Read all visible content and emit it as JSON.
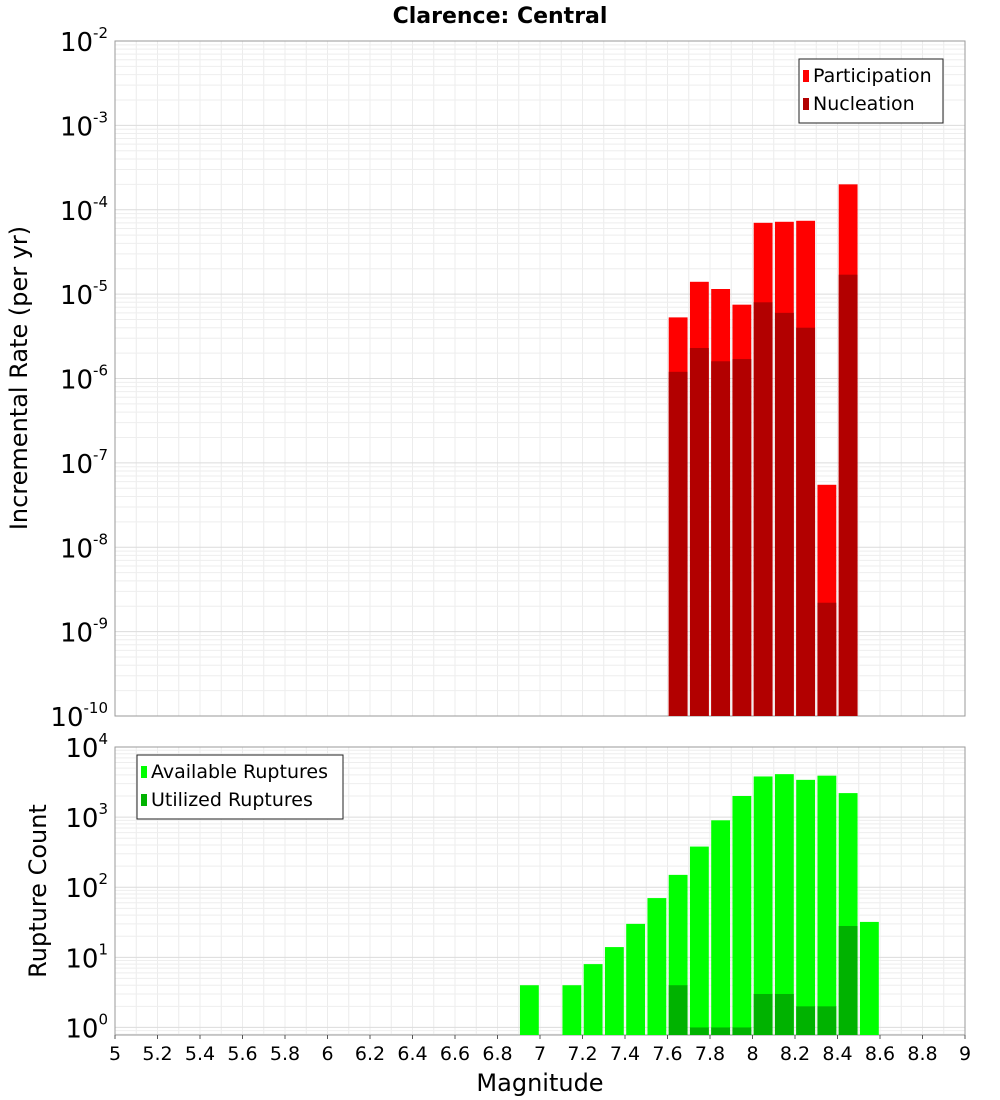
{
  "chart_data": [
    {
      "type": "bar",
      "title": "Clarence: Central",
      "xlabel": "",
      "ylabel": "Incremental Rate (per yr)",
      "yscale": "log",
      "ylim": [
        1e-10,
        0.01
      ],
      "xlim": [
        5,
        9
      ],
      "grid": true,
      "legend_position": "top-right",
      "x": [
        7.65,
        7.75,
        7.85,
        7.95,
        8.05,
        8.15,
        8.25,
        8.35,
        8.45
      ],
      "series": [
        {
          "name": "Participation",
          "color": "#ff0000",
          "values": [
            5.3e-06,
            1.4e-05,
            1.15e-05,
            7.5e-06,
            7e-05,
            7.2e-05,
            7.4e-05,
            5.5e-08,
            0.0002
          ]
        },
        {
          "name": "Nucleation",
          "color": "#b20000",
          "values": [
            1.2e-06,
            2.3e-06,
            1.6e-06,
            1.7e-06,
            8e-06,
            6e-06,
            4e-06,
            2.2e-09,
            1.7e-05
          ]
        }
      ],
      "y_ticks": [
        {
          "base": "10",
          "exp": "-2"
        },
        {
          "base": "10",
          "exp": "-3"
        },
        {
          "base": "10",
          "exp": "-4"
        },
        {
          "base": "10",
          "exp": "-5"
        },
        {
          "base": "10",
          "exp": "-6"
        },
        {
          "base": "10",
          "exp": "-7"
        },
        {
          "base": "10",
          "exp": "-8"
        },
        {
          "base": "10",
          "exp": "-9"
        },
        {
          "base": "10",
          "exp": "-10"
        }
      ]
    },
    {
      "type": "bar",
      "title": "",
      "xlabel": "Magnitude",
      "ylabel": "Rupture Count",
      "yscale": "log",
      "ylim": [
        0.78,
        10000
      ],
      "xlim": [
        5,
        9
      ],
      "grid": true,
      "legend_position": "top-left",
      "x": [
        6.95,
        7.15,
        7.25,
        7.35,
        7.45,
        7.55,
        7.65,
        7.75,
        7.85,
        7.95,
        8.05,
        8.15,
        8.25,
        8.35,
        8.45,
        8.55
      ],
      "series": [
        {
          "name": "Available Ruptures",
          "color": "#00ff00",
          "values": [
            4,
            4,
            8,
            14,
            30,
            70,
            150,
            380,
            900,
            2000,
            3800,
            4100,
            3400,
            3900,
            2200,
            32
          ]
        },
        {
          "name": "Utilized Ruptures",
          "color": "#00b200",
          "values": [
            null,
            null,
            null,
            null,
            null,
            null,
            4,
            1,
            1,
            1,
            3,
            3,
            2,
            2,
            28,
            null
          ]
        }
      ],
      "y_ticks": [
        {
          "base": "10",
          "exp": "4"
        },
        {
          "base": "10",
          "exp": "3"
        },
        {
          "base": "10",
          "exp": "2"
        },
        {
          "base": "10",
          "exp": "1"
        },
        {
          "base": "10",
          "exp": "0"
        }
      ],
      "x_ticks": [
        "5",
        "5.2",
        "5.4",
        "5.6",
        "5.8",
        "6",
        "6.2",
        "6.4",
        "6.6",
        "6.8",
        "7",
        "7.2",
        "7.4",
        "7.6",
        "7.8",
        "8",
        "8.2",
        "8.4",
        "8.6",
        "8.8",
        "9"
      ]
    }
  ]
}
